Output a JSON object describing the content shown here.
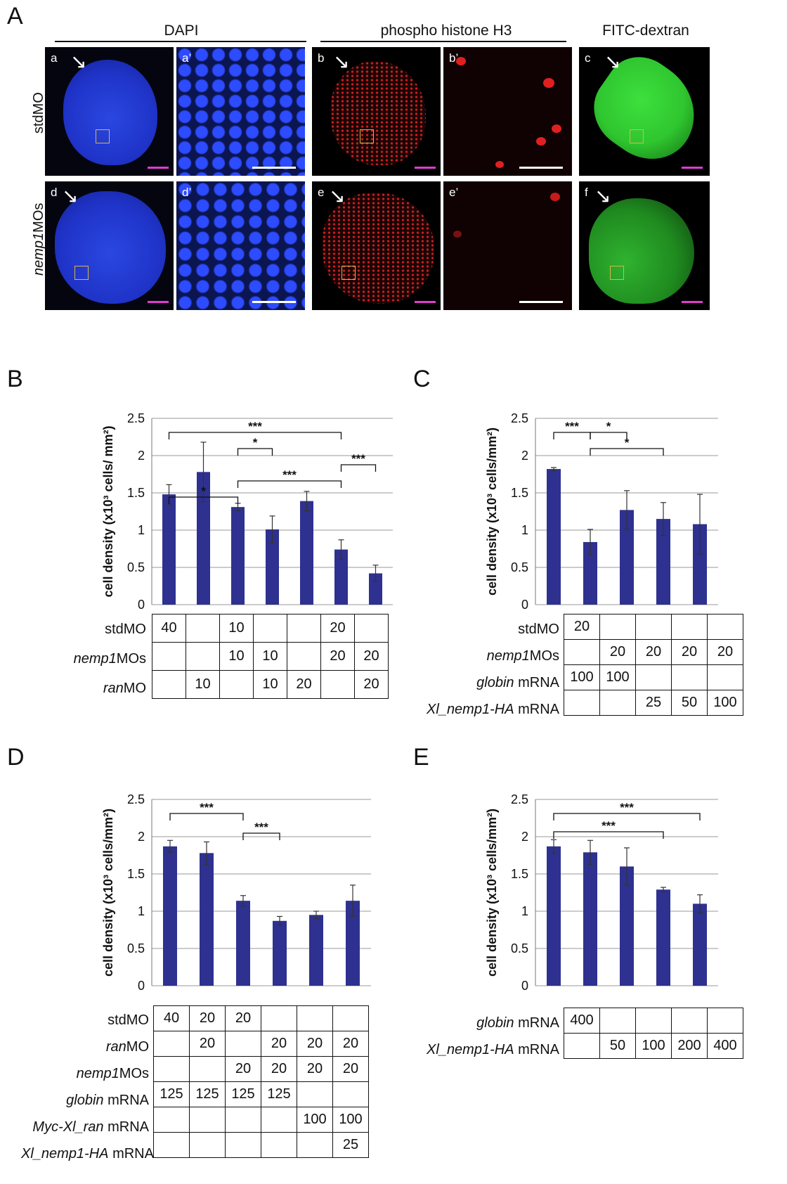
{
  "panel_letters": {
    "A": "A",
    "B": "B",
    "C": "C",
    "D": "D",
    "E": "E"
  },
  "panelA": {
    "headers": {
      "dapi": "DAPI",
      "ph3": "phospho histone H3",
      "fitc": "FITC-dextran"
    },
    "row_labels": {
      "top": "stdMO",
      "bottom_italic": "nemp1",
      "bottom_rest": "MOs"
    },
    "sublabels": {
      "a": "a",
      "a2": "a’",
      "b": "b",
      "b2": "b’",
      "c": "c",
      "d": "d",
      "d2": "d’",
      "e": "e",
      "e2": "e’",
      "f": "f"
    },
    "colors": {
      "dapi": "#1f33c8",
      "ph3": "#d42020",
      "fitc": "#2fc62f",
      "scale_whole": "#e23bd0",
      "scale_zoom": "#ffffff",
      "roi": "#d6b64a"
    }
  },
  "chart_data": [
    {
      "panel": "B",
      "type": "bar",
      "ylabel": "cell density (x10³ cells/ mm²)",
      "ylim": [
        0,
        2.5
      ],
      "yticks": [
        0,
        0.5,
        1,
        1.5,
        2,
        2.5
      ],
      "ytick_labels": [
        "0",
        "0.5",
        "1",
        "1.5",
        "2",
        "2.5"
      ],
      "bar_color": "#2e318f",
      "grid": true,
      "values": [
        1.48,
        1.78,
        1.31,
        1.01,
        1.39,
        0.74,
        0.42
      ],
      "errors": [
        0.13,
        0.4,
        0.05,
        0.18,
        0.13,
        0.13,
        0.11
      ],
      "significance": [
        {
          "from": 0,
          "to": 2,
          "label": "*"
        },
        {
          "from": 0,
          "to": 5,
          "label": "***"
        },
        {
          "from": 2,
          "to": 5,
          "label": "***"
        },
        {
          "from": 2,
          "to": 3,
          "label": "*"
        },
        {
          "from": 5,
          "to": 6,
          "label": "***"
        }
      ],
      "table": {
        "rows": [
          {
            "name_italic": "",
            "name": "stdMO",
            "cells": [
              "40",
              "",
              "10",
              "",
              "",
              "20",
              ""
            ]
          },
          {
            "name_italic": "nemp1",
            "name": "MOs",
            "cells": [
              "",
              "",
              "10",
              "10",
              "",
              "20",
              "20"
            ]
          },
          {
            "name_italic": "ran",
            "name": "MO",
            "cells": [
              "",
              "10",
              "",
              "10",
              "20",
              "",
              "20"
            ]
          }
        ]
      }
    },
    {
      "panel": "C",
      "type": "bar",
      "ylabel": "cell density (x10³ cells/mm²)",
      "ylim": [
        0,
        2.5
      ],
      "yticks": [
        0,
        0.5,
        1,
        1.5,
        2,
        2.5
      ],
      "ytick_labels": [
        "0",
        "0.5",
        "1",
        "1.5",
        "2",
        "2.5"
      ],
      "bar_color": "#2e318f",
      "grid": true,
      "values": [
        1.82,
        0.84,
        1.27,
        1.15,
        1.08
      ],
      "errors": [
        0.02,
        0.17,
        0.26,
        0.22,
        0.4
      ],
      "significance": [
        {
          "from": 0,
          "to": 1,
          "label": "***"
        },
        {
          "from": 1,
          "to": 3,
          "label": "*"
        },
        {
          "from": 1,
          "to": 2,
          "label": "*"
        }
      ],
      "table": {
        "rows": [
          {
            "name_italic": "",
            "name": "stdMO",
            "cells": [
              "20",
              "",
              "",
              "",
              ""
            ]
          },
          {
            "name_italic": "nemp1",
            "name": "MOs",
            "cells": [
              "",
              "20",
              "20",
              "20",
              "20"
            ]
          },
          {
            "name_italic": "globin",
            "name": " mRNA",
            "cells": [
              "100",
              "100",
              "",
              "",
              ""
            ]
          },
          {
            "name_italic": "Xl_nemp1-HA",
            "name": " mRNA",
            "cells": [
              "",
              "",
              "25",
              "50",
              "100"
            ]
          }
        ]
      }
    },
    {
      "panel": "D",
      "type": "bar",
      "ylabel": "cell density (x10³ cells/mm²)",
      "ylim": [
        0,
        2.5
      ],
      "yticks": [
        0,
        0.5,
        1,
        1.5,
        2,
        2.5
      ],
      "ytick_labels": [
        "0",
        "0.5",
        "1",
        "1.5",
        "2",
        "2.5"
      ],
      "bar_color": "#2e318f",
      "grid": true,
      "values": [
        1.87,
        1.78,
        1.14,
        0.87,
        0.95,
        1.14
      ],
      "errors": [
        0.08,
        0.15,
        0.07,
        0.06,
        0.05,
        0.21
      ],
      "significance": [
        {
          "from": 0,
          "to": 2,
          "label": "***"
        },
        {
          "from": 2,
          "to": 3,
          "label": "***"
        }
      ],
      "table": {
        "rows": [
          {
            "name_italic": "",
            "name": "stdMO",
            "cells": [
              "40",
              "20",
              "20",
              "",
              "",
              ""
            ]
          },
          {
            "name_italic": "ran",
            "name": "MO",
            "cells": [
              "",
              "20",
              "",
              "20",
              "20",
              "20"
            ]
          },
          {
            "name_italic": "nemp1",
            "name": "MOs",
            "cells": [
              "",
              "",
              "20",
              "20",
              "20",
              "20"
            ]
          },
          {
            "name_italic": "globin",
            "name": " mRNA",
            "cells": [
              "125",
              "125",
              "125",
              "125",
              "",
              ""
            ]
          },
          {
            "name_italic": "Myc-Xl_ran",
            "name": " mRNA",
            "cells": [
              "",
              "",
              "",
              "",
              "100",
              "100"
            ]
          },
          {
            "name_italic": "Xl_nemp1-HA",
            "name": " mRNA",
            "cells": [
              "",
              "",
              "",
              "",
              "",
              "25"
            ]
          }
        ]
      }
    },
    {
      "panel": "E",
      "type": "bar",
      "ylabel": "cell density (x10³ cells/mm²)",
      "ylim": [
        0,
        2.5
      ],
      "yticks": [
        0,
        0.5,
        1,
        1.5,
        2,
        2.5
      ],
      "ytick_labels": [
        "0",
        "0.5",
        "1",
        "1.5",
        "2",
        "2.5"
      ],
      "bar_color": "#2e318f",
      "grid": true,
      "values": [
        1.87,
        1.79,
        1.6,
        1.29,
        1.1
      ],
      "errors": [
        0.09,
        0.16,
        0.25,
        0.03,
        0.12
      ],
      "significance": [
        {
          "from": 0,
          "to": 4,
          "label": "***"
        },
        {
          "from": 0,
          "to": 3,
          "label": "***"
        }
      ],
      "table": {
        "rows": [
          {
            "name_italic": "globin",
            "name": " mRNA",
            "cells": [
              "400",
              "",
              "",
              "",
              ""
            ]
          },
          {
            "name_italic": "Xl_nemp1-HA",
            "name": " mRNA",
            "cells": [
              "",
              "50",
              "100",
              "200",
              "400"
            ]
          }
        ]
      }
    }
  ]
}
